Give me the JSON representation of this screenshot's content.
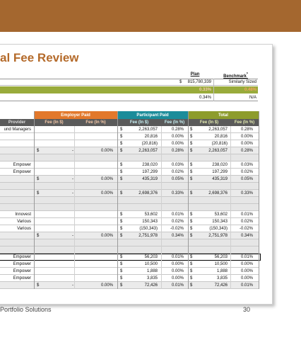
{
  "header": {
    "title": "al Fee Review"
  },
  "summary": {
    "columns": [
      "Plan",
      "Benchmark"
    ],
    "benchmark_note": "*",
    "rows": [
      [
        "$",
        "815,780,339",
        "Similarly Sized"
      ],
      [
        "0.33%",
        "0.48%"
      ],
      [
        "0.34%",
        "N/A"
      ]
    ]
  },
  "table": {
    "groups": [
      "Employer Paid",
      "Participant Paid",
      "Total"
    ],
    "subheaders": [
      "Provider",
      "Fee (In $)",
      "Fee (In %)",
      "Fee (In $)",
      "Fee (In %)",
      "Fee (In $)",
      "Fee (In %)"
    ],
    "rows": [
      [
        "und Managers",
        null,
        null,
        null,
        "$",
        "2,263,057",
        "0.28%",
        "$",
        "2,263,057",
        "0.28%"
      ],
      [
        null,
        null,
        null,
        null,
        "$",
        "20,816",
        "0.00%",
        "$",
        "20,816",
        "0.00%"
      ],
      [
        null,
        null,
        null,
        null,
        "$",
        "(20,816)",
        "0.00%",
        "$",
        "(20,816)",
        "0.00%"
      ],
      [
        null,
        "$",
        "-",
        "0.00%",
        "$",
        "2,263,057",
        "0.28%",
        "$",
        "2,263,057",
        "0.28%"
      ],
      [
        null,
        null,
        null,
        null,
        null,
        null,
        null,
        null,
        null,
        null
      ],
      [
        "Empower",
        null,
        null,
        null,
        "$",
        "238,020",
        "0.03%",
        "$",
        "238,020",
        "0.03%"
      ],
      [
        "Empower",
        null,
        null,
        null,
        "$",
        "197,299",
        "0.02%",
        "$",
        "197,299",
        "0.02%"
      ],
      [
        null,
        "$",
        "-",
        "0.00%",
        "$",
        "435,319",
        "0.05%",
        "$",
        "435,319",
        "0.05%"
      ],
      [
        null,
        null,
        null,
        null,
        null,
        null,
        null,
        null,
        null,
        null
      ],
      [
        null,
        "$",
        "-",
        "0.00%",
        "$",
        "2,698,376",
        "0.33%",
        "$",
        "2,698,376",
        "0.33%"
      ],
      [
        null,
        null,
        null,
        null,
        null,
        null,
        null,
        null,
        null,
        null
      ],
      [
        null,
        null,
        null,
        null,
        null,
        null,
        null,
        null,
        null,
        null
      ],
      [
        "Innovest",
        null,
        null,
        null,
        "$",
        "53,602",
        "0.01%",
        "$",
        "53,602",
        "0.01%"
      ],
      [
        "Various",
        null,
        null,
        null,
        "$",
        "150,343",
        "0.02%",
        "$",
        "150,343",
        "0.02%"
      ],
      [
        "Various",
        null,
        null,
        null,
        "$",
        "(150,343)",
        "-0.02%",
        "$",
        "(150,343)",
        "-0.02%"
      ],
      [
        null,
        "$",
        "-",
        "0.00%",
        "$",
        "2,751,978",
        "0.34%",
        "$",
        "2,751,978",
        "0.34%"
      ],
      [
        null,
        null,
        null,
        null,
        null,
        null,
        null,
        null,
        null,
        null
      ],
      [
        null,
        null,
        null,
        null,
        null,
        null,
        null,
        null,
        null,
        null
      ],
      [
        "Empower",
        null,
        null,
        null,
        "$",
        "56,203",
        "0.01%",
        "$",
        "56,203",
        "0.01%"
      ],
      [
        "Empower",
        null,
        null,
        null,
        "$",
        "10,500",
        "0.00%",
        "$",
        "10,500",
        "0.00%"
      ],
      [
        "Empower",
        null,
        null,
        null,
        "$",
        "1,888",
        "0.00%",
        "$",
        "1,888",
        "0.00%"
      ],
      [
        "Empower",
        null,
        null,
        null,
        "$",
        "3,835",
        "0.00%",
        "$",
        "3,835",
        "0.00%"
      ],
      [
        null,
        "$",
        "-",
        "0.00%",
        "$",
        "72,426",
        "0.01%",
        "$",
        "72,426",
        "0.01%"
      ]
    ]
  },
  "footer": {
    "text": "Portfolio Solutions",
    "page": "30"
  }
}
